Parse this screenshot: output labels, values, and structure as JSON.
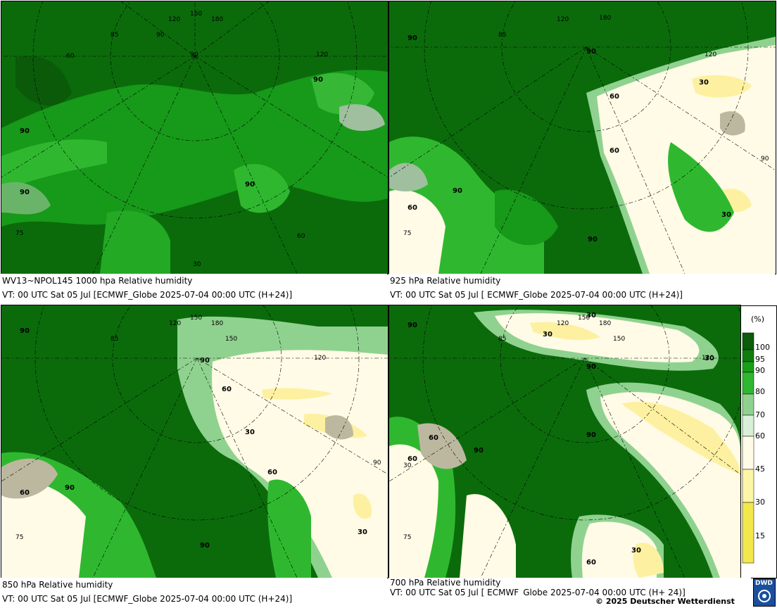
{
  "panels": [
    {
      "id": "p1",
      "caption1": "WV13~NPOL145 1000 hpa Relative humidity",
      "caption2": "VT: 00 UTC Sat  05 Jul [ECMWF_Globe 2025-07-04 00:00 UTC  (H+24)]",
      "labels": [
        "90",
        "90",
        "90",
        "90",
        "60",
        "30",
        "75",
        "85",
        "90",
        "150",
        "180",
        "120",
        "120",
        "90",
        "60"
      ]
    },
    {
      "id": "p2",
      "caption1": "925 hPa Relative humidity",
      "caption2": "VT: 00 UTC Sat  05 Jul [ ECMWF_Globe 2025-07-04 00:00 UTC  (H+24)]",
      "labels": [
        "90",
        "90",
        "30",
        "60",
        "60",
        "90",
        "30",
        "60",
        "90",
        "75",
        "120",
        "180",
        "85",
        "120",
        "90"
      ]
    },
    {
      "id": "p3",
      "caption1": "850 hPa  Relative humidity",
      "caption2": "VT: 00 UTC Sat  05 Jul [ECMWF_Globe 2025-07-04 00:00 UTC  (H+24)]",
      "labels": [
        "90",
        "90",
        "60",
        "30",
        "60",
        "90",
        "30",
        "60",
        "90",
        "75",
        "120",
        "150",
        "150",
        "180",
        "85",
        "120",
        "90"
      ]
    },
    {
      "id": "p4",
      "caption1": "700 hPa Relative humidity",
      "caption2": "VT: 00 UTC Sat  05 Jul [ ECMWF_Globe 2025-07-04 00:00 UTC  (H+ 24)]",
      "labels": [
        "90",
        "30",
        "30",
        "30",
        "60",
        "90",
        "90",
        "60",
        "90",
        "60",
        "30",
        "75",
        "120",
        "150",
        "180",
        "150",
        "85",
        "120",
        "30"
      ]
    }
  ],
  "legend": {
    "unit": "(%)",
    "levels": [
      "100",
      "95",
      "90",
      "80",
      "70",
      "60",
      "45",
      "30",
      "15"
    ],
    "colors": [
      "#0b5c0b",
      "#0e7d0e",
      "#16a016",
      "#2fb82f",
      "#8fd28f",
      "#d8f0d8",
      "#fffbe6",
      "#fdf5a8",
      "#f3e84a"
    ]
  },
  "footer": {
    "copyright": "© 2025 Deutscher Wetterdienst",
    "logo_text": "DWD"
  }
}
